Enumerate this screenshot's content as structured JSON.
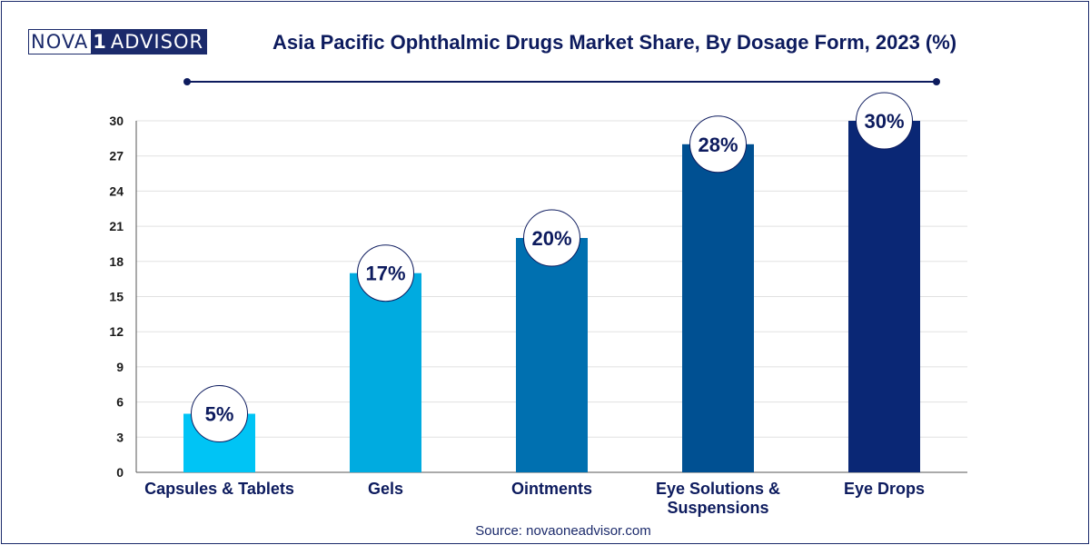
{
  "logo": {
    "part1": "NOVA",
    "part2": "1",
    "part3": "ADVISOR"
  },
  "source": "Source: novaoneadvisor.com",
  "colors": {
    "title": "#0d1b5e",
    "bars": [
      "#00c4f5",
      "#00abe0",
      "#0070b0",
      "#005092",
      "#0a2775"
    ]
  },
  "chart_data": {
    "type": "bar",
    "title": "Asia Pacific Ophthalmic Drugs Market Share, By Dosage Form, 2023 (%)",
    "categories": [
      "Capsules & Tablets",
      "Gels",
      "Ointments",
      "Eye Solutions & Suspensions",
      "Eye Drops"
    ],
    "values": [
      5,
      17,
      20,
      28,
      30
    ],
    "data_labels": [
      "5%",
      "17%",
      "20%",
      "28%",
      "30%"
    ],
    "ylim": [
      0,
      30
    ],
    "yticks": [
      0,
      3,
      6,
      9,
      12,
      15,
      18,
      21,
      24,
      27,
      30
    ],
    "grid": true,
    "xlabel": "",
    "ylabel": ""
  }
}
